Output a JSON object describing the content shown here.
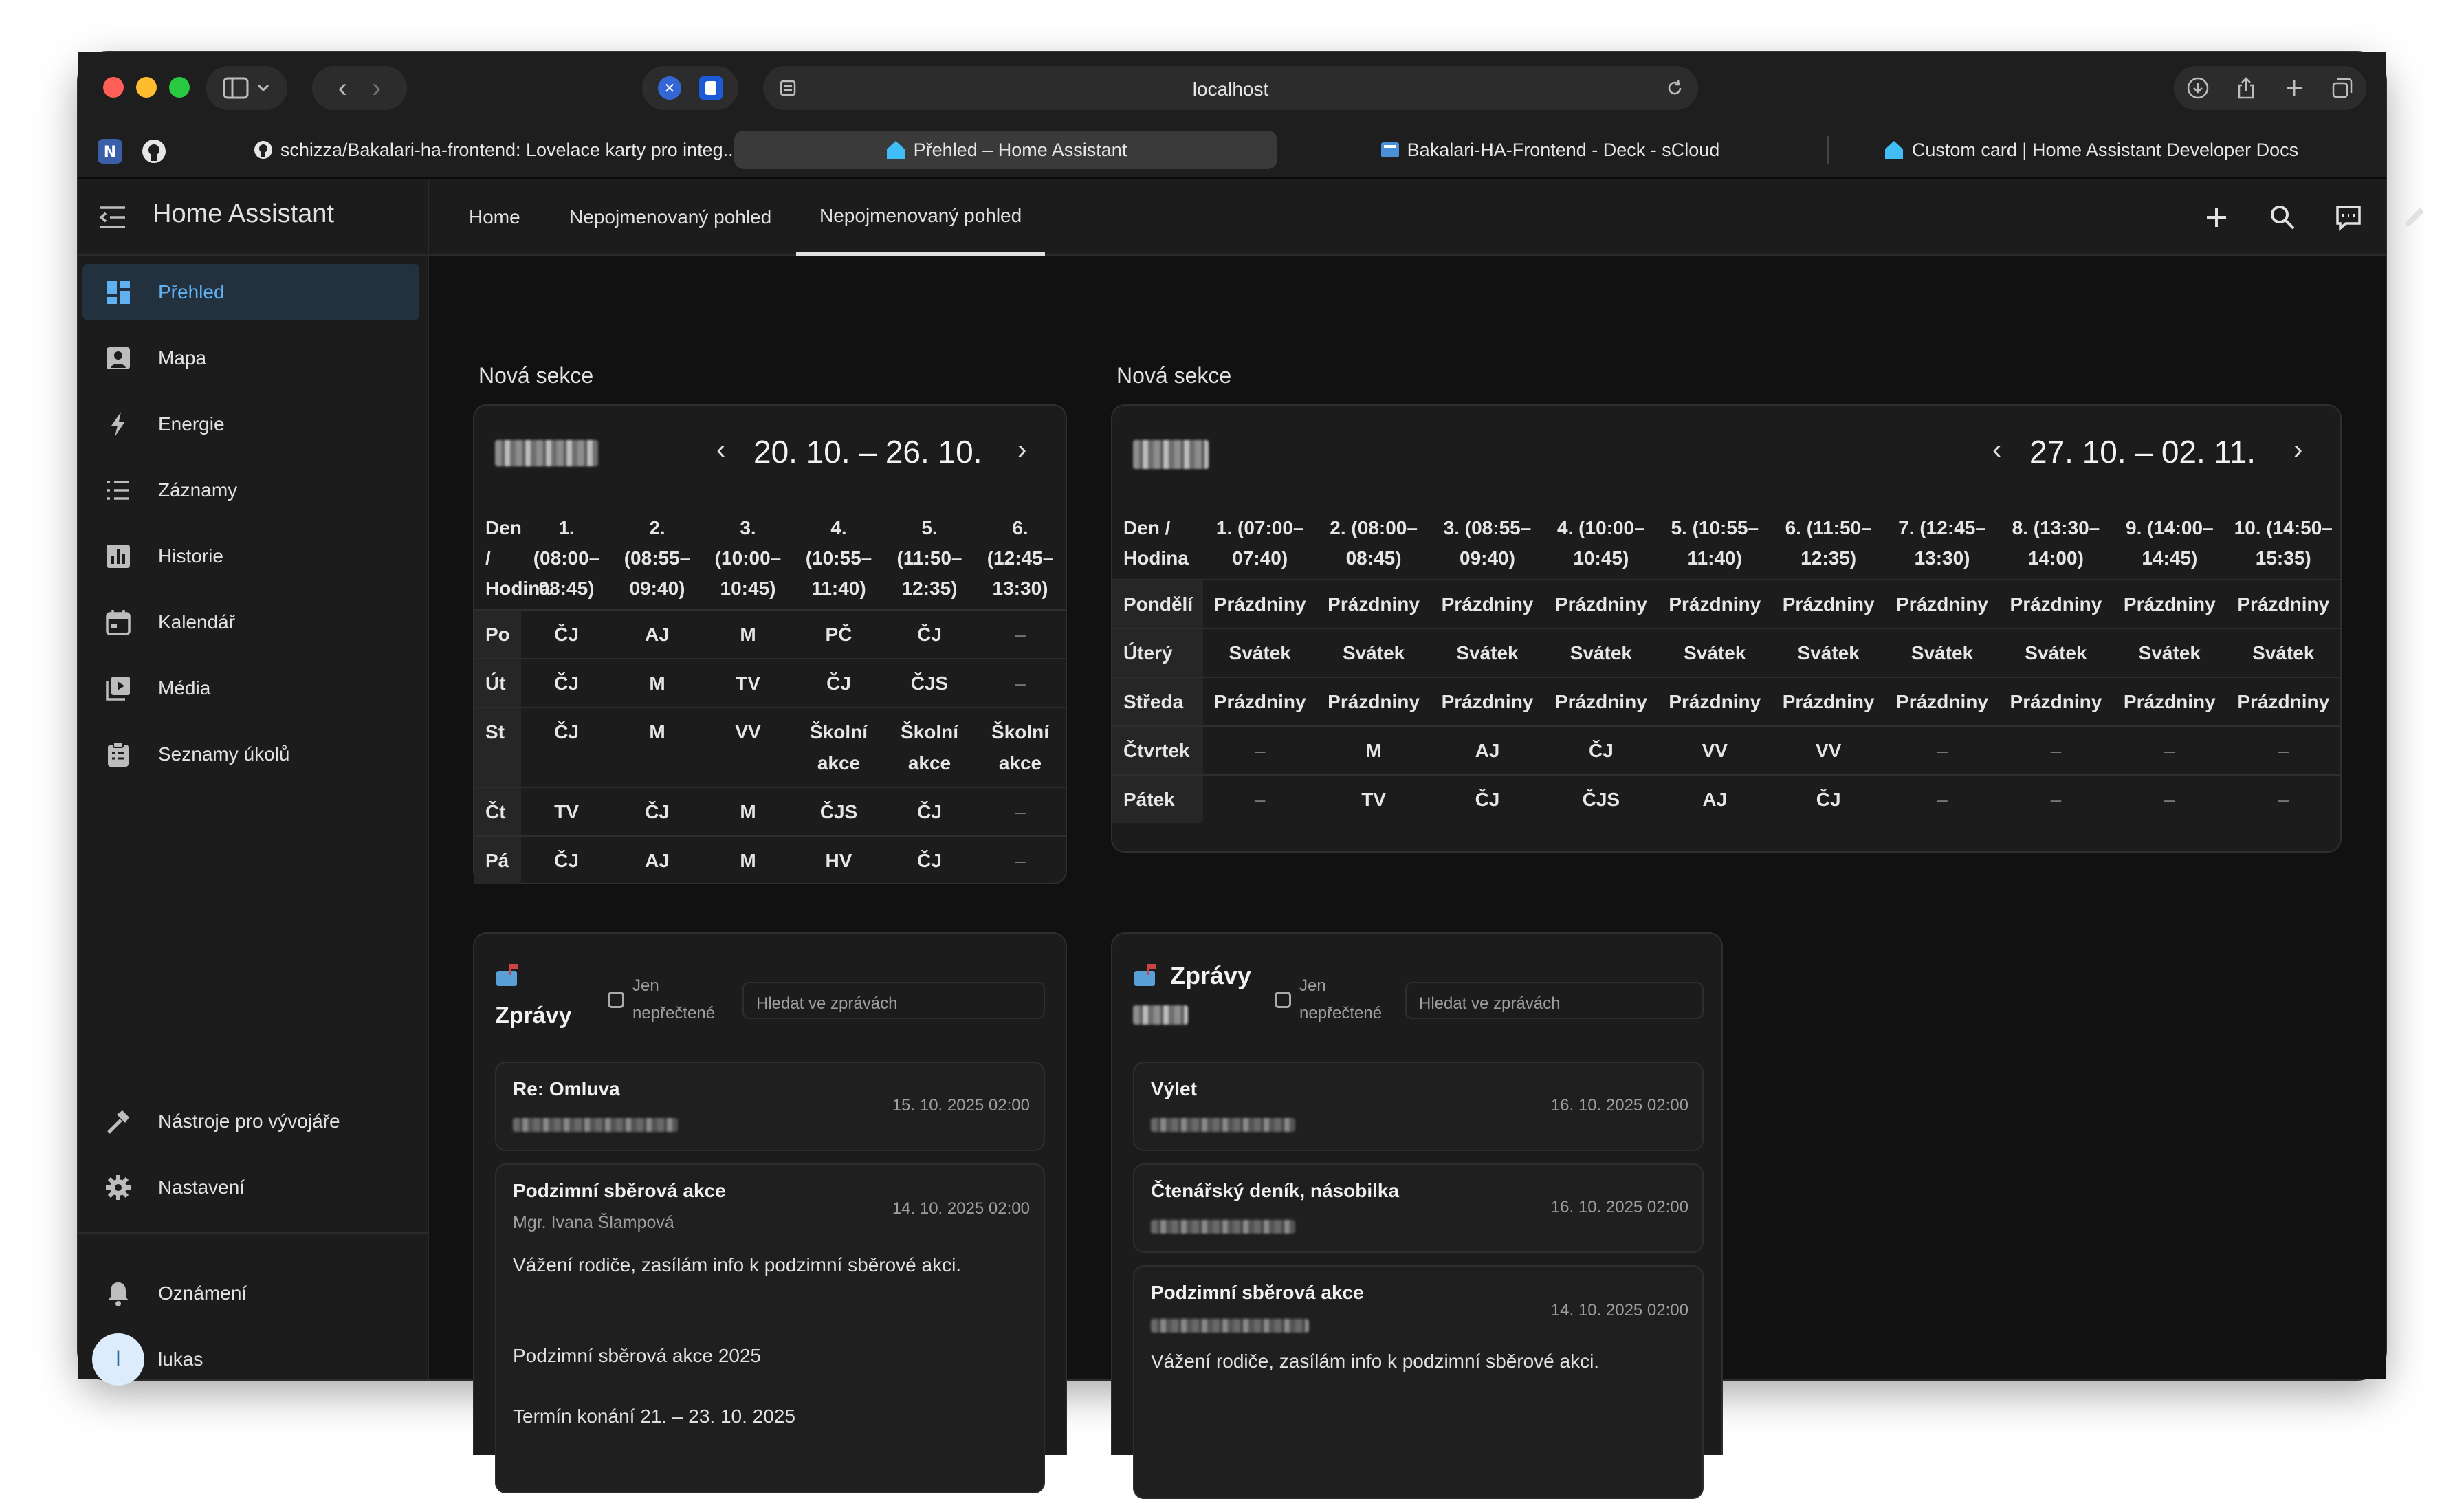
{
  "browser": {
    "url": "localhost",
    "tabs": [
      {
        "label": "schizza/Bakalari-ha-frontend: Lovelace karty pro integ...",
        "active": false
      },
      {
        "label": "Přehled – Home Assistant",
        "active": true
      },
      {
        "label": "Bakalari-HA-Frontend - Deck - sCloud",
        "active": false
      },
      {
        "label": "Custom card | Home Assistant Developer Docs",
        "active": false
      }
    ]
  },
  "sidebar": {
    "title": "Home Assistant",
    "items": [
      {
        "label": "Přehled",
        "icon": "dashboard-icon",
        "active": true
      },
      {
        "label": "Mapa",
        "icon": "map-icon"
      },
      {
        "label": "Energie",
        "icon": "lightning-icon"
      },
      {
        "label": "Záznamy",
        "icon": "list-icon"
      },
      {
        "label": "Historie",
        "icon": "chart-icon"
      },
      {
        "label": "Kalendář",
        "icon": "calendar-icon"
      },
      {
        "label": "Média",
        "icon": "media-icon"
      },
      {
        "label": "Seznamy úkolů",
        "icon": "clipboard-icon"
      }
    ],
    "bottom_items": [
      {
        "label": "Nástroje pro vývojáře",
        "icon": "hammer-icon"
      },
      {
        "label": "Nastavení",
        "icon": "gear-icon"
      }
    ],
    "notifications": "Oznámení",
    "user": {
      "name": "lukas",
      "initial": "l"
    }
  },
  "header": {
    "views": [
      {
        "label": "Home",
        "active": false
      },
      {
        "label": "Nepojmenovaný pohled",
        "active": false
      },
      {
        "label": "Nepojmenovaný pohled",
        "active": true
      }
    ]
  },
  "sections": [
    {
      "title": "Nová sekce",
      "timetable": {
        "week": "20. 10. – 26. 10.",
        "header": [
          "Den / Hodina",
          "1. (08:00–08:45)",
          "2. (08:55–09:40)",
          "3. (10:00–10:45)",
          "4. (10:55–11:40)",
          "5. (11:50–12:35)",
          "6. (12:45–13:30)"
        ],
        "rows": [
          {
            "day": "Po",
            "cells": [
              "ČJ",
              "AJ",
              "M",
              "PČ",
              "ČJ",
              "–"
            ]
          },
          {
            "day": "Út",
            "cells": [
              "ČJ",
              "M",
              "TV",
              "ČJ",
              "ČJS",
              "–"
            ]
          },
          {
            "day": "St",
            "cells": [
              "ČJ",
              "M",
              "VV",
              "Školní akce",
              "Školní akce",
              "Školní akce"
            ]
          },
          {
            "day": "Čt",
            "cells": [
              "TV",
              "ČJ",
              "M",
              "ČJS",
              "ČJ",
              "–"
            ]
          },
          {
            "day": "Pá",
            "cells": [
              "ČJ",
              "AJ",
              "M",
              "HV",
              "ČJ",
              "–"
            ]
          }
        ]
      },
      "messages": {
        "title": "Zprávy",
        "unread_label": "Jen nepřečtené",
        "search_placeholder": "Hledat ve zprávách",
        "items": [
          {
            "title": "Re: Omluva",
            "date": "15. 10. 2025 02:00",
            "from": "",
            "body": ""
          },
          {
            "title": "Podzimní sběrová akce",
            "date": "14. 10. 2025 02:00",
            "from": "Mgr. Ivana Šlampová",
            "body": "Vážení rodiče, zasílám info k podzimní sběrové akci.\n\n\nPodzimní  sběrová akce 2025\n\nTermín konání 21. – 23. 10.  2025"
          }
        ]
      }
    },
    {
      "title": "Nová sekce",
      "timetable": {
        "week": "27. 10. – 02. 11.",
        "header": [
          "Den / Hodina",
          "1. (07:00–07:40)",
          "2. (08:00–08:45)",
          "3. (08:55–09:40)",
          "4. (10:00–10:45)",
          "5. (10:55–11:40)",
          "6. (11:50–12:35)",
          "7. (12:45–13:30)",
          "8. (13:30–14:00)",
          "9. (14:00–14:45)",
          "10. (14:50–15:35)"
        ],
        "rows": [
          {
            "day": "Pondělí",
            "cells": [
              "Prázdniny",
              "Prázdniny",
              "Prázdniny",
              "Prázdniny",
              "Prázdniny",
              "Prázdniny",
              "Prázdniny",
              "Prázdniny",
              "Prázdniny",
              "Prázdniny"
            ]
          },
          {
            "day": "Úterý",
            "cells": [
              "Svátek",
              "Svátek",
              "Svátek",
              "Svátek",
              "Svátek",
              "Svátek",
              "Svátek",
              "Svátek",
              "Svátek",
              "Svátek"
            ]
          },
          {
            "day": "Středa",
            "cells": [
              "Prázdniny",
              "Prázdniny",
              "Prázdniny",
              "Prázdniny",
              "Prázdniny",
              "Prázdniny",
              "Prázdniny",
              "Prázdniny",
              "Prázdniny",
              "Prázdniny"
            ]
          },
          {
            "day": "Čtvrtek",
            "cells": [
              "–",
              "M",
              "AJ",
              "ČJ",
              "VV",
              "VV",
              "–",
              "–",
              "–",
              "–"
            ]
          },
          {
            "day": "Pátek",
            "cells": [
              "–",
              "TV",
              "ČJ",
              "ČJS",
              "AJ",
              "ČJ",
              "–",
              "–",
              "–",
              "–"
            ]
          }
        ]
      },
      "messages": {
        "title": "Zprávy",
        "unread_label": "Jen nepřečtené",
        "search_placeholder": "Hledat ve zprávách",
        "items": [
          {
            "title": "Výlet",
            "date": "16. 10. 2025 02:00",
            "from": "",
            "body": ""
          },
          {
            "title": "Čtenářský deník, násobilka",
            "date": "16. 10. 2025 02:00",
            "from": "",
            "body": ""
          },
          {
            "title": "Podzimní sběrová akce",
            "date": "14. 10. 2025 02:00",
            "from": "",
            "body": "Vážení rodiče, zasílám info k podzimní sběrové akci."
          }
        ]
      }
    }
  ],
  "colors": {
    "accent": "#5fb1f2",
    "background": "#111111",
    "card": "#1c1c1c"
  }
}
